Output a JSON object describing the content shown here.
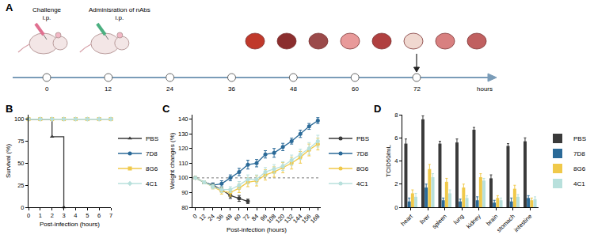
{
  "diagram": {
    "panel": "A",
    "steps": [
      {
        "label": "Challenge i.p.",
        "time": 0
      },
      {
        "label": "Adminisration of nAbs i.p.",
        "time": 12
      }
    ],
    "organs": {
      "time": 72
    },
    "timeline": {
      "ticks": [
        0,
        12,
        24,
        36,
        48,
        60,
        72
      ],
      "label": "hours"
    }
  },
  "chart_data": [
    {
      "panel": "B",
      "type": "line",
      "line_style": "step",
      "x_label": "Post-infection (hours)",
      "y_label": "Survival (%)",
      "x": [
        0,
        1,
        2,
        3,
        4,
        5,
        6,
        7
      ],
      "xlim": [
        0,
        7
      ],
      "xticks": [
        0,
        1,
        2,
        3,
        4,
        5,
        6,
        7
      ],
      "ylim": [
        0,
        105
      ],
      "yticks": [
        0,
        25,
        50,
        75,
        100
      ],
      "grid": false,
      "legend": "right",
      "series": [
        {
          "name": "PBS",
          "color": "#3a3a3a",
          "marker": "triangle-up",
          "values": [
            100,
            100,
            80,
            0,
            null,
            null,
            null,
            null
          ]
        },
        {
          "name": "7D8",
          "color": "#2b6a98",
          "marker": "circle",
          "values": [
            100,
            100,
            100,
            100,
            100,
            100,
            100,
            100
          ]
        },
        {
          "name": "8G6",
          "color": "#f0c94a",
          "marker": "square",
          "values": [
            100,
            100,
            100,
            100,
            100,
            100,
            100,
            100
          ]
        },
        {
          "name": "4C1",
          "color": "#b8e0dc",
          "marker": "diamond",
          "values": [
            100,
            100,
            100,
            100,
            100,
            100,
            100,
            100
          ]
        }
      ]
    },
    {
      "panel": "C",
      "type": "line",
      "x_label": "Post-infection (hours)",
      "y_label": "Weight changes (%)",
      "x": [
        0,
        12,
        24,
        36,
        48,
        60,
        72,
        84,
        96,
        108,
        120,
        132,
        144,
        156,
        168
      ],
      "xlim": [
        -4,
        172
      ],
      "xticks": [
        0,
        12,
        24,
        36,
        48,
        60,
        72,
        84,
        96,
        108,
        120,
        132,
        144,
        156,
        168
      ],
      "ylim": [
        80,
        143
      ],
      "yticks": [
        80,
        90,
        100,
        110,
        120,
        130,
        140
      ],
      "reference_line": 100,
      "grid": false,
      "legend": "right",
      "series": [
        {
          "name": "PBS",
          "color": "#3a3a3a",
          "marker": "circle",
          "values": [
            100,
            97,
            95,
            92,
            88,
            86,
            84,
            null,
            null,
            null,
            null,
            null,
            null,
            null,
            null
          ],
          "errors": [
            0,
            1,
            1.5,
            1.5,
            2,
            2,
            1.5,
            null,
            null,
            null,
            null,
            null,
            null,
            null,
            null
          ]
        },
        {
          "name": "7D8",
          "color": "#2b6a98",
          "marker": "circle",
          "values": [
            100,
            97,
            95,
            96,
            100,
            104,
            109,
            110,
            116,
            117,
            121,
            125,
            130,
            135,
            139
          ],
          "errors": [
            0,
            1,
            1.5,
            2,
            2,
            2.5,
            3,
            2.5,
            2.5,
            3,
            2.5,
            2,
            2.5,
            2,
            2
          ]
        },
        {
          "name": "8G6",
          "color": "#f0c94a",
          "marker": "circle",
          "values": [
            100,
            97,
            94,
            91,
            90,
            93,
            97,
            98,
            102,
            104,
            107,
            110,
            114,
            119,
            123
          ],
          "errors": [
            0,
            1,
            1.5,
            2,
            2.5,
            3,
            3,
            3.5,
            3.5,
            3.5,
            3.5,
            4,
            4,
            4,
            4
          ]
        },
        {
          "name": "4C1",
          "color": "#b8e0dc",
          "marker": "circle",
          "values": [
            100,
            97,
            94,
            92,
            92,
            95,
            99,
            99,
            104,
            106,
            108,
            112,
            116,
            120,
            125
          ],
          "errors": [
            0,
            1,
            1.5,
            2,
            2,
            2.5,
            3,
            3,
            3,
            3,
            3,
            3.5,
            3.5,
            4,
            4
          ]
        }
      ]
    },
    {
      "panel": "D",
      "type": "bar",
      "y_label": "TCID50/mL",
      "categories": [
        "heart",
        "liver",
        "spleen",
        "lung",
        "kidney",
        "brain",
        "stomach",
        "intestine"
      ],
      "ylim": [
        0,
        8
      ],
      "yticks": [
        0,
        2,
        4,
        6,
        8
      ],
      "grid": false,
      "legend": "right",
      "series": [
        {
          "name": "PBS",
          "color": "#3a3a3a",
          "values": [
            5.5,
            7.6,
            5.5,
            5.6,
            6.7,
            2.5,
            5.3,
            5.7
          ],
          "errors": [
            0.4,
            0.3,
            0.2,
            0.3,
            0.2,
            0.3,
            0.2,
            0.3
          ]
        },
        {
          "name": "7D8",
          "color": "#2b6a98",
          "values": [
            0.5,
            1.7,
            0.6,
            0.5,
            0.6,
            0.4,
            0.5,
            0.8
          ],
          "errors": [
            0.3,
            0.3,
            0.2,
            0.2,
            0.3,
            0.2,
            0.3,
            0.2
          ]
        },
        {
          "name": "8G6",
          "color": "#f0c94a",
          "values": [
            1.2,
            3.3,
            2.2,
            1.7,
            2.6,
            0.8,
            1.6,
            0.6
          ],
          "errors": [
            0.3,
            0.4,
            0.3,
            0.3,
            0.3,
            0.2,
            0.3,
            0.2
          ]
        },
        {
          "name": "4C1",
          "color": "#b8e0dc",
          "values": [
            0.9,
            2.6,
            1.2,
            0.8,
            2.3,
            0.6,
            0.9,
            0.7
          ],
          "errors": [
            0.3,
            0.3,
            0.3,
            0.2,
            0.2,
            0.2,
            0.2,
            0.2
          ]
        }
      ]
    }
  ]
}
